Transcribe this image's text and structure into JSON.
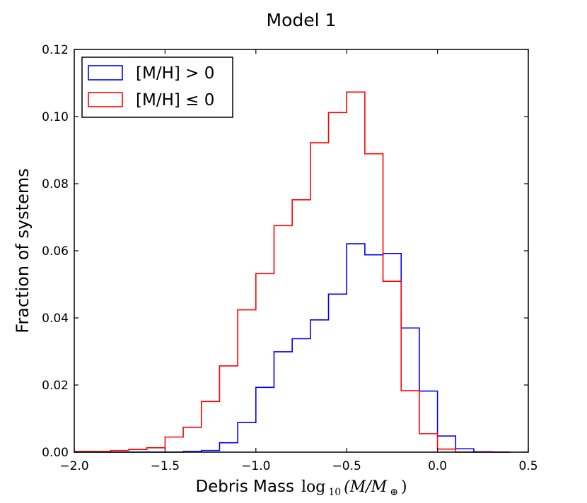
{
  "chart_data": {
    "type": "histogram",
    "title": "Model 1",
    "xlabel_text": "Debris Mass",
    "xlabel_math": {
      "prefix": "log",
      "subscript": "10",
      "open": "(M/M",
      "subscript2": "⊕",
      "close": ")"
    },
    "ylabel": "Fraction of systems",
    "xlim": [
      -2.0,
      0.5
    ],
    "ylim": [
      0.0,
      0.12
    ],
    "xticks": [
      -2.0,
      -1.5,
      -1.0,
      -0.5,
      0.0,
      0.5
    ],
    "xtick_labels": [
      "−2.0",
      "−1.5",
      "−1.0",
      "−0.5",
      "0.0",
      "0.5"
    ],
    "yticks": [
      0.0,
      0.02,
      0.04,
      0.06,
      0.08,
      0.1,
      0.12
    ],
    "ytick_labels": [
      "0.00",
      "0.02",
      "0.04",
      "0.06",
      "0.08",
      "0.10",
      "0.12"
    ],
    "legend_position": "top-left",
    "bin_edges": [
      -2.0,
      -1.9,
      -1.8,
      -1.7,
      -1.6,
      -1.5,
      -1.4,
      -1.3,
      -1.2,
      -1.1,
      -1.0,
      -0.9,
      -0.8,
      -0.7,
      -0.6,
      -0.5,
      -0.4,
      -0.3,
      -0.2,
      -0.1,
      0.0,
      0.1,
      0.2,
      0.3,
      0.4
    ],
    "series": [
      {
        "name": "[M/H] > 0",
        "legend_label": "[M/H] > 0",
        "color": "#0000ff",
        "values": [
          0,
          0,
          0,
          0,
          0,
          0,
          0.0002,
          0.0005,
          0.0028,
          0.0088,
          0.0193,
          0.0299,
          0.0338,
          0.0394,
          0.0471,
          0.0621,
          0.0588,
          0.0592,
          0.037,
          0.0182,
          0.0048,
          0.001,
          0.0001,
          0
        ]
      },
      {
        "name": "[M/H] <= 0",
        "legend_label": "[M/H] ≤ 0",
        "color": "#ff0000",
        "values": [
          0.0002,
          0.0002,
          0.0005,
          0.0008,
          0.0013,
          0.0045,
          0.0074,
          0.0151,
          0.0257,
          0.0424,
          0.0532,
          0.0675,
          0.0752,
          0.0922,
          0.1012,
          0.1073,
          0.0889,
          0.0509,
          0.0183,
          0.0055,
          0.0009,
          0,
          0,
          0
        ]
      }
    ]
  }
}
